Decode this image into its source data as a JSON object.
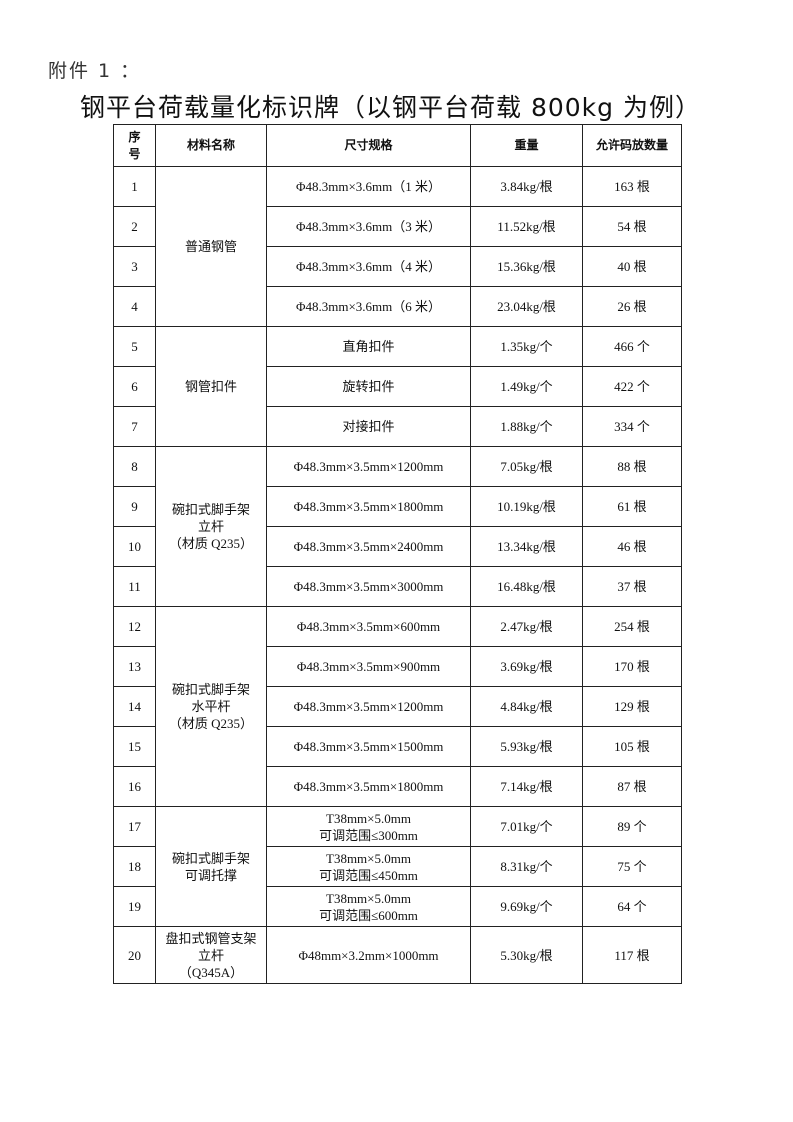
{
  "attachment_label": "附件 1 ：",
  "title": "钢平台荷载量化标识牌（以钢平台荷载 800kg 为例）",
  "headers": [
    "序\n号",
    "材料名称",
    "尺寸规格",
    "重量",
    "允许码放数量"
  ],
  "groups": [
    {
      "name": "普通钢管",
      "rows": [
        {
          "no": "1",
          "spec": "Φ48.3mm×3.6mm（1 米）",
          "weight": "3.84kg/根",
          "qty": "163 根"
        },
        {
          "no": "2",
          "spec": "Φ48.3mm×3.6mm（3 米）",
          "weight": "11.52kg/根",
          "qty": "54 根"
        },
        {
          "no": "3",
          "spec": "Φ48.3mm×3.6mm（4 米）",
          "weight": "15.36kg/根",
          "qty": "40 根"
        },
        {
          "no": "4",
          "spec": "Φ48.3mm×3.6mm（6 米）",
          "weight": "23.04kg/根",
          "qty": "26 根"
        }
      ]
    },
    {
      "name": "钢管扣件",
      "rows": [
        {
          "no": "5",
          "spec": "直角扣件",
          "weight": "1.35kg/个",
          "qty": "466 个"
        },
        {
          "no": "6",
          "spec": "旋转扣件",
          "weight": "1.49kg/个",
          "qty": "422 个"
        },
        {
          "no": "7",
          "spec": "对接扣件",
          "weight": "1.88kg/个",
          "qty": "334 个"
        }
      ]
    },
    {
      "name": "碗扣式脚手架\n立杆\n（材质 Q235）",
      "rows": [
        {
          "no": "8",
          "spec": "Φ48.3mm×3.5mm×1200mm",
          "weight": "7.05kg/根",
          "qty": "88 根"
        },
        {
          "no": "9",
          "spec": "Φ48.3mm×3.5mm×1800mm",
          "weight": "10.19kg/根",
          "qty": "61 根"
        },
        {
          "no": "10",
          "spec": "Φ48.3mm×3.5mm×2400mm",
          "weight": "13.34kg/根",
          "qty": "46 根"
        },
        {
          "no": "11",
          "spec": "Φ48.3mm×3.5mm×3000mm",
          "weight": "16.48kg/根",
          "qty": "37 根"
        }
      ]
    },
    {
      "name": "碗扣式脚手架\n水平杆\n（材质 Q235）",
      "rows": [
        {
          "no": "12",
          "spec": "Φ48.3mm×3.5mm×600mm",
          "weight": "2.47kg/根",
          "qty": "254 根"
        },
        {
          "no": "13",
          "spec": "Φ48.3mm×3.5mm×900mm",
          "weight": "3.69kg/根",
          "qty": "170 根"
        },
        {
          "no": "14",
          "spec": "Φ48.3mm×3.5mm×1200mm",
          "weight": "4.84kg/根",
          "qty": "129 根"
        },
        {
          "no": "15",
          "spec": "Φ48.3mm×3.5mm×1500mm",
          "weight": "5.93kg/根",
          "qty": "105 根"
        },
        {
          "no": "16",
          "spec": "Φ48.3mm×3.5mm×1800mm",
          "weight": "7.14kg/根",
          "qty": "87 根"
        }
      ]
    },
    {
      "name": "碗扣式脚手架\n可调托撑",
      "rows": [
        {
          "no": "17",
          "spec": "T38mm×5.0mm\n可调范围≤300mm",
          "weight": "7.01kg/个",
          "qty": "89 个"
        },
        {
          "no": "18",
          "spec": "T38mm×5.0mm\n可调范围≤450mm",
          "weight": "8.31kg/个",
          "qty": "75 个"
        },
        {
          "no": "19",
          "spec": "T38mm×5.0mm\n可调范围≤600mm",
          "weight": "9.69kg/个",
          "qty": "64 个"
        }
      ]
    },
    {
      "name": "盘扣式钢管支架\n立杆\n（Q345A）",
      "rows": [
        {
          "no": "20",
          "spec": "Φ48mm×3.2mm×1000mm",
          "weight": "5.30kg/根",
          "qty": "117 根"
        }
      ]
    }
  ]
}
